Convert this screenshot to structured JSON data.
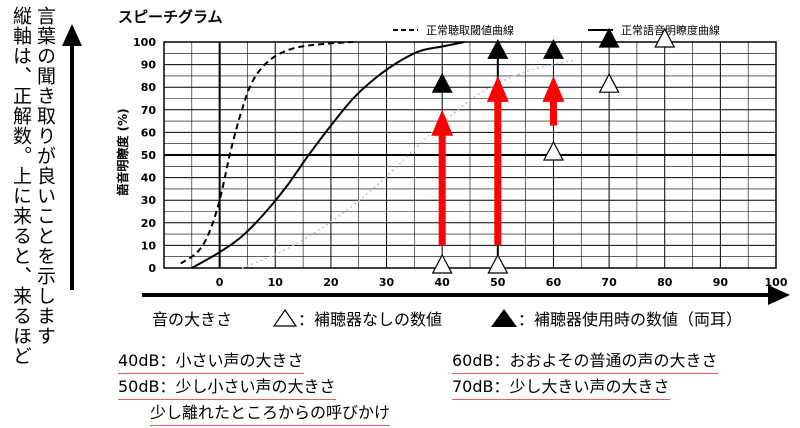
{
  "side_note": {
    "line1": "縦軸は、正解数。上に来ると、来るほど",
    "line2": "言葉の聞き取りが良いことを示します"
  },
  "chart_data": {
    "type": "line",
    "title": "スピーチグラム",
    "ylabel": "語音明瞭度 (%)",
    "xlabel": "音の大きさ",
    "xlim": [
      -10,
      100
    ],
    "ylim": [
      0,
      100
    ],
    "x_ticks": [
      0,
      10,
      20,
      30,
      40,
      50,
      60,
      70,
      80,
      90,
      100
    ],
    "y_ticks": [
      0,
      10,
      20,
      30,
      40,
      50,
      60,
      70,
      80,
      90,
      100
    ],
    "grid": true,
    "series": [
      {
        "name": "正常聴取閾値曲線",
        "style": "dashed",
        "points": [
          [
            -7,
            2
          ],
          [
            -4,
            7
          ],
          [
            -2,
            15
          ],
          [
            0,
            30
          ],
          [
            2,
            52
          ],
          [
            4,
            70
          ],
          [
            6,
            83
          ],
          [
            9,
            92
          ],
          [
            13,
            97
          ],
          [
            18,
            99
          ],
          [
            24,
            100
          ]
        ]
      },
      {
        "name": "正常語音明瞭度曲線",
        "style": "solid",
        "points": [
          [
            -5,
            0
          ],
          [
            0,
            7
          ],
          [
            4,
            14
          ],
          [
            8,
            24
          ],
          [
            12,
            36
          ],
          [
            16,
            50
          ],
          [
            20,
            63
          ],
          [
            24,
            75
          ],
          [
            28,
            84
          ],
          [
            32,
            91
          ],
          [
            36,
            96
          ],
          [
            40,
            98
          ],
          [
            44,
            100
          ]
        ]
      }
    ],
    "reference_curve": {
      "color": "#c0c0c0",
      "style": "dotted",
      "points": [
        [
          4,
          0
        ],
        [
          10,
          6
        ],
        [
          16,
          14
        ],
        [
          22,
          24
        ],
        [
          28,
          36
        ],
        [
          34,
          50
        ],
        [
          40,
          64
        ],
        [
          46,
          76
        ],
        [
          52,
          84
        ],
        [
          58,
          89
        ],
        [
          64,
          92
        ]
      ]
    },
    "measurements": [
      {
        "level": 40,
        "aided": 80,
        "unaided": 0
      },
      {
        "level": 50,
        "aided": 95,
        "unaided": 0
      },
      {
        "level": 60,
        "aided": 95,
        "unaided": 50
      },
      {
        "level": 70,
        "aided": 100,
        "unaided": 80
      }
    ],
    "extra_unaided_marks": [
      [
        80,
        100
      ]
    ],
    "improvement_arrows": [
      {
        "x": 40,
        "from": 10,
        "to": 70
      },
      {
        "x": 50,
        "from": 10,
        "to": 85
      },
      {
        "x": 60,
        "from": 63,
        "to": 85
      }
    ],
    "colors": {
      "arrow": "#ff0000",
      "grid": "#000000",
      "reference": "#c0c0c0"
    }
  },
  "legend": {
    "unaided": "：補聴器なしの数値",
    "aided": "：補聴器使用時の数値（両耳）"
  },
  "levels_left": [
    {
      "db": "40dB",
      "text": "：小さい声の大きさ"
    },
    {
      "db": "50dB",
      "text": "：少し小さい声の大きさ"
    },
    {
      "db": "",
      "text": "少し離れたところからの呼びかけ"
    }
  ],
  "levels_right": [
    {
      "db": "60dB",
      "text": "：おおよその普通の声の大きさ"
    },
    {
      "db": "70dB",
      "text": "：少し大きい声の大きさ"
    }
  ]
}
